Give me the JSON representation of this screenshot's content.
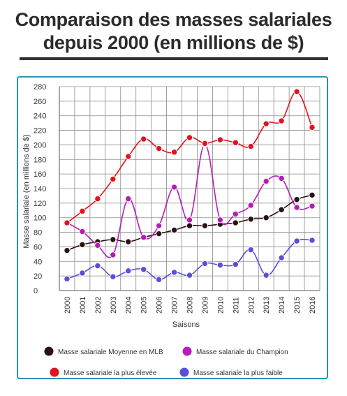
{
  "title": {
    "line1": "Comparaison des masses salariales",
    "line2": "depuis 2000 (en millions de $)"
  },
  "chart_data": {
    "type": "line",
    "x": [
      "2000",
      "2001",
      "2002",
      "2003",
      "2004",
      "2005",
      "2006",
      "2007",
      "2008",
      "2009",
      "2010",
      "2011",
      "2012",
      "2013",
      "2014",
      "2015",
      "2016"
    ],
    "xlabel": "Saisons",
    "ylabel": "Masse salariale (en millions de $)",
    "ylim": [
      0,
      280
    ],
    "yticks": [
      0,
      20,
      40,
      60,
      80,
      100,
      120,
      140,
      160,
      180,
      200,
      220,
      240,
      260,
      280
    ],
    "grid": true,
    "legend": "bottom",
    "series": [
      {
        "name": "Masse salariale Moyenne en MLB",
        "color": "#2b1212",
        "values": [
          55,
          63,
          67,
          70,
          67,
          73,
          78,
          83,
          89,
          89,
          91,
          93,
          98,
          100,
          111,
          125,
          131
        ]
      },
      {
        "name": "Masse salariale du Champion",
        "color": "#b51db8",
        "values": [
          93,
          81,
          62,
          49,
          126,
          73,
          89,
          142,
          97,
          201,
          97,
          105,
          117,
          150,
          154,
          114,
          116
        ]
      },
      {
        "name": "Masse salariale la plus élevée",
        "color": "#e0141e",
        "values": [
          93,
          109,
          126,
          153,
          184,
          208,
          195,
          190,
          210,
          202,
          207,
          203,
          198,
          229,
          233,
          273,
          224
        ]
      },
      {
        "name": "Masse salariale la plus faible",
        "color": "#5a4fdb",
        "values": [
          16,
          24,
          34,
          19,
          27,
          29,
          15,
          25,
          21,
          37,
          35,
          36,
          56,
          21,
          45,
          68,
          69
        ]
      }
    ]
  }
}
